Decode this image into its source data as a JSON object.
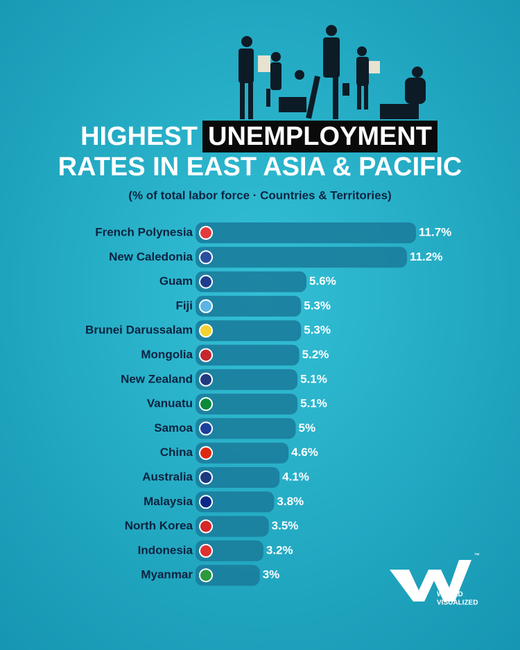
{
  "chart_data": {
    "type": "bar",
    "title": {
      "line1": "HIGHEST",
      "highlight": "UNEMPLOYMENT",
      "line2": "RATES IN EAST ASIA & PACIFIC"
    },
    "subtitle": "(% of total labor force · Countries & Territories)",
    "categories": [
      "French Polynesia",
      "New Caledonia",
      "Guam",
      "Fiji",
      "Brunei Darussalam",
      "Mongolia",
      "New Zealand",
      "Vanuatu",
      "Samoa",
      "China",
      "Australia",
      "Malaysia",
      "North Korea",
      "Indonesia",
      "Myanmar"
    ],
    "values": [
      11.7,
      11.2,
      5.6,
      5.3,
      5.3,
      5.2,
      5.1,
      5.1,
      5,
      4.6,
      4.1,
      3.8,
      3.5,
      3.2,
      3
    ],
    "value_labels": [
      "11.7%",
      "11.2%",
      "5.6%",
      "5.3%",
      "5.3%",
      "5.2%",
      "5.1%",
      "5.1%",
      "5%",
      "4.6%",
      "4.1%",
      "3.8%",
      "3.5%",
      "3.2%",
      "3%"
    ],
    "color": "#1b7d9c"
  },
  "brand": {
    "line1": "WORLD",
    "line2": "VISUALIZED",
    "mark": "™"
  }
}
